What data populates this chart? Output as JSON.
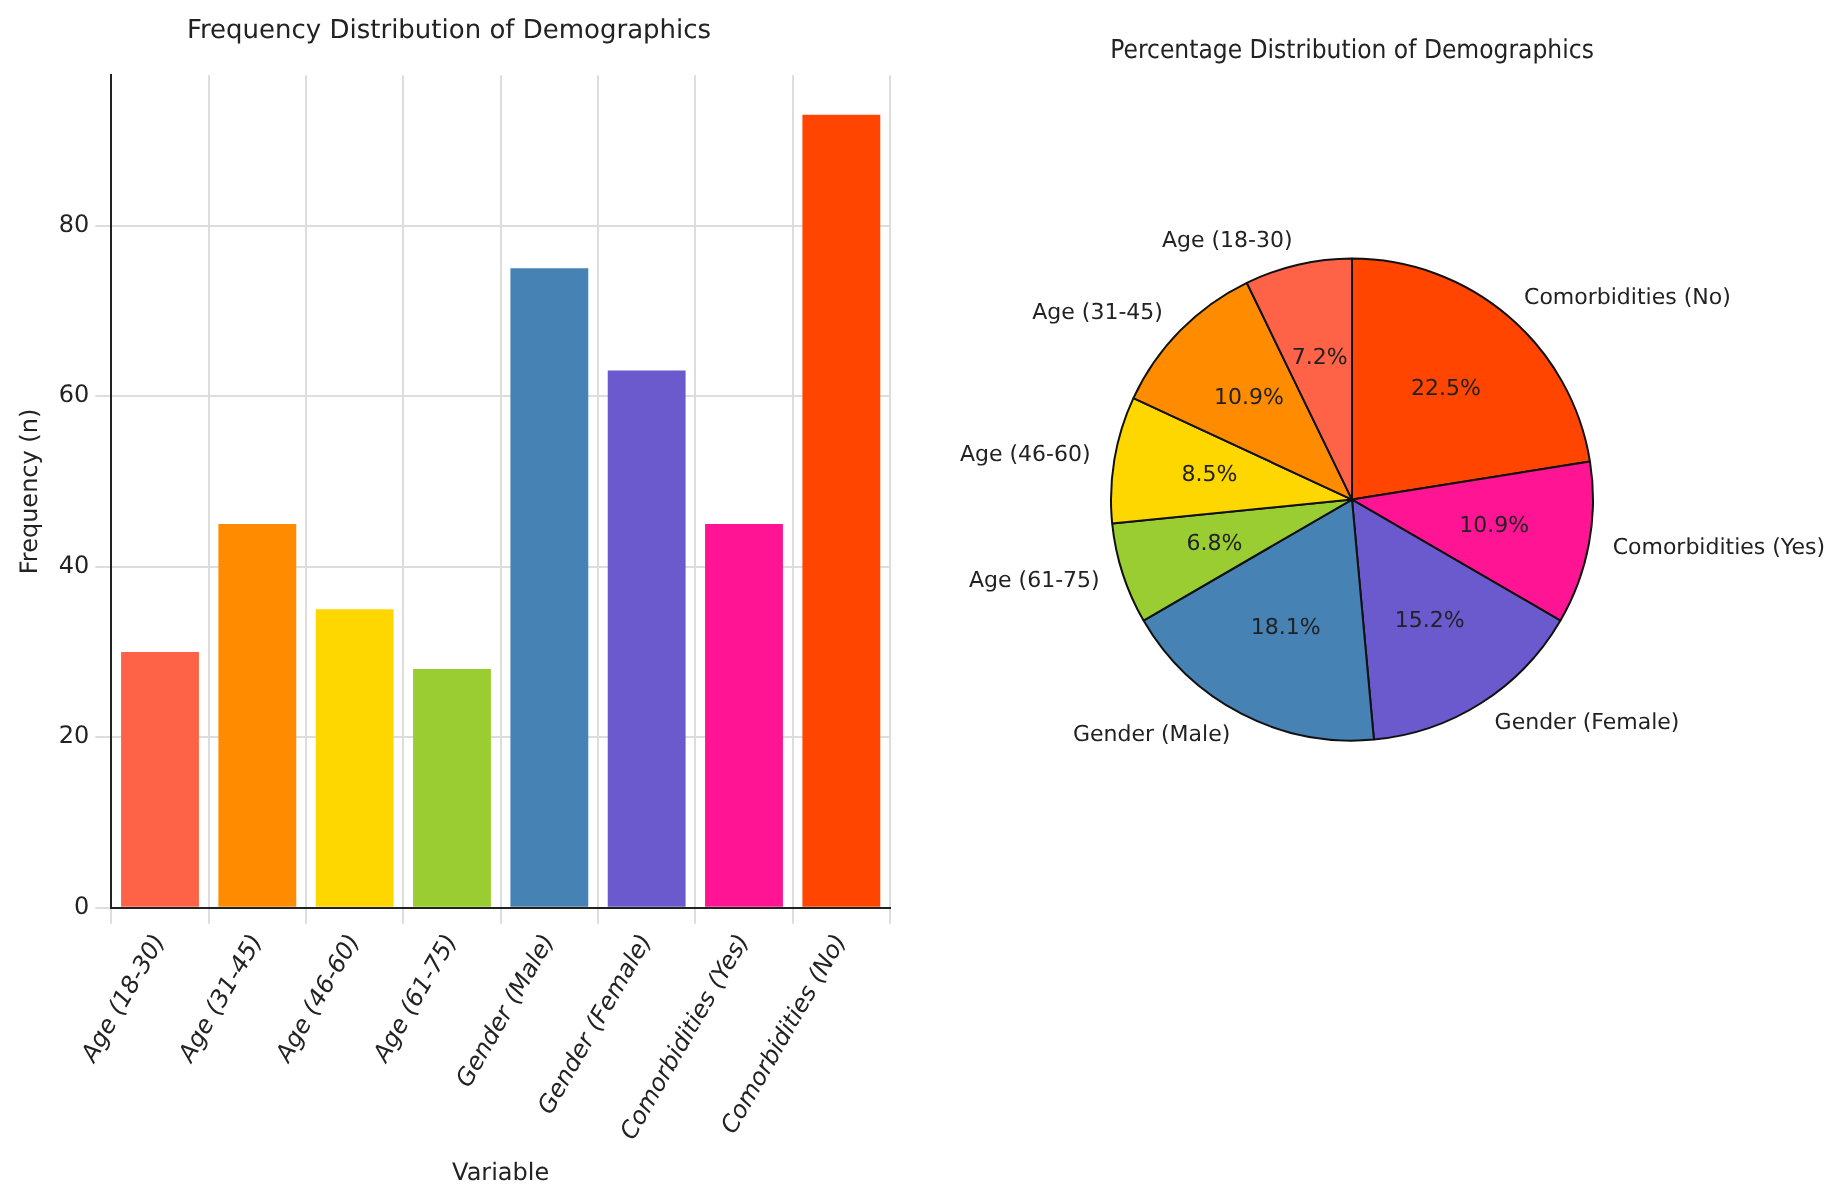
{
  "chart_data": [
    {
      "type": "bar",
      "title": "Frequency Distribution of Demographics",
      "xlabel": "Variable",
      "ylabel": "Frequency (n)",
      "categories": [
        "Age (18-30)",
        "Age (31-45)",
        "Age (46-60)",
        "Age (61-75)",
        "Gender (Male)",
        "Gender (Female)",
        "Comorbidities (Yes)",
        "Comorbidities (No)"
      ],
      "values": [
        30,
        45,
        35,
        28,
        75,
        63,
        45,
        93
      ],
      "colors": [
        "#ff6347",
        "#ff8c00",
        "#ffd700",
        "#9acd32",
        "#4682b4",
        "#6a5acd",
        "#ff1493",
        "#ff4500"
      ],
      "ylim": [
        0,
        97.65
      ],
      "yticks": [
        0,
        20,
        40,
        60,
        80
      ],
      "grid": true
    },
    {
      "type": "pie",
      "title": "Percentage Distribution of Demographics",
      "categories": [
        "Comorbidities (No)",
        "Comorbidities (Yes)",
        "Gender (Female)",
        "Gender (Male)",
        "Age (61-75)",
        "Age (46-60)",
        "Age (31-45)",
        "Age (18-30)"
      ],
      "values": [
        22.5,
        10.9,
        15.2,
        18.1,
        6.8,
        8.5,
        10.9,
        7.2
      ],
      "value_labels": [
        "22.5%",
        "10.9%",
        "15.2%",
        "18.1%",
        "6.8%",
        "8.5%",
        "10.9%",
        "7.2%"
      ],
      "colors": [
        "#ff4500",
        "#ff1493",
        "#6a5acd",
        "#4682b4",
        "#9acd32",
        "#ffd700",
        "#ff8c00",
        "#ff6347"
      ]
    }
  ]
}
